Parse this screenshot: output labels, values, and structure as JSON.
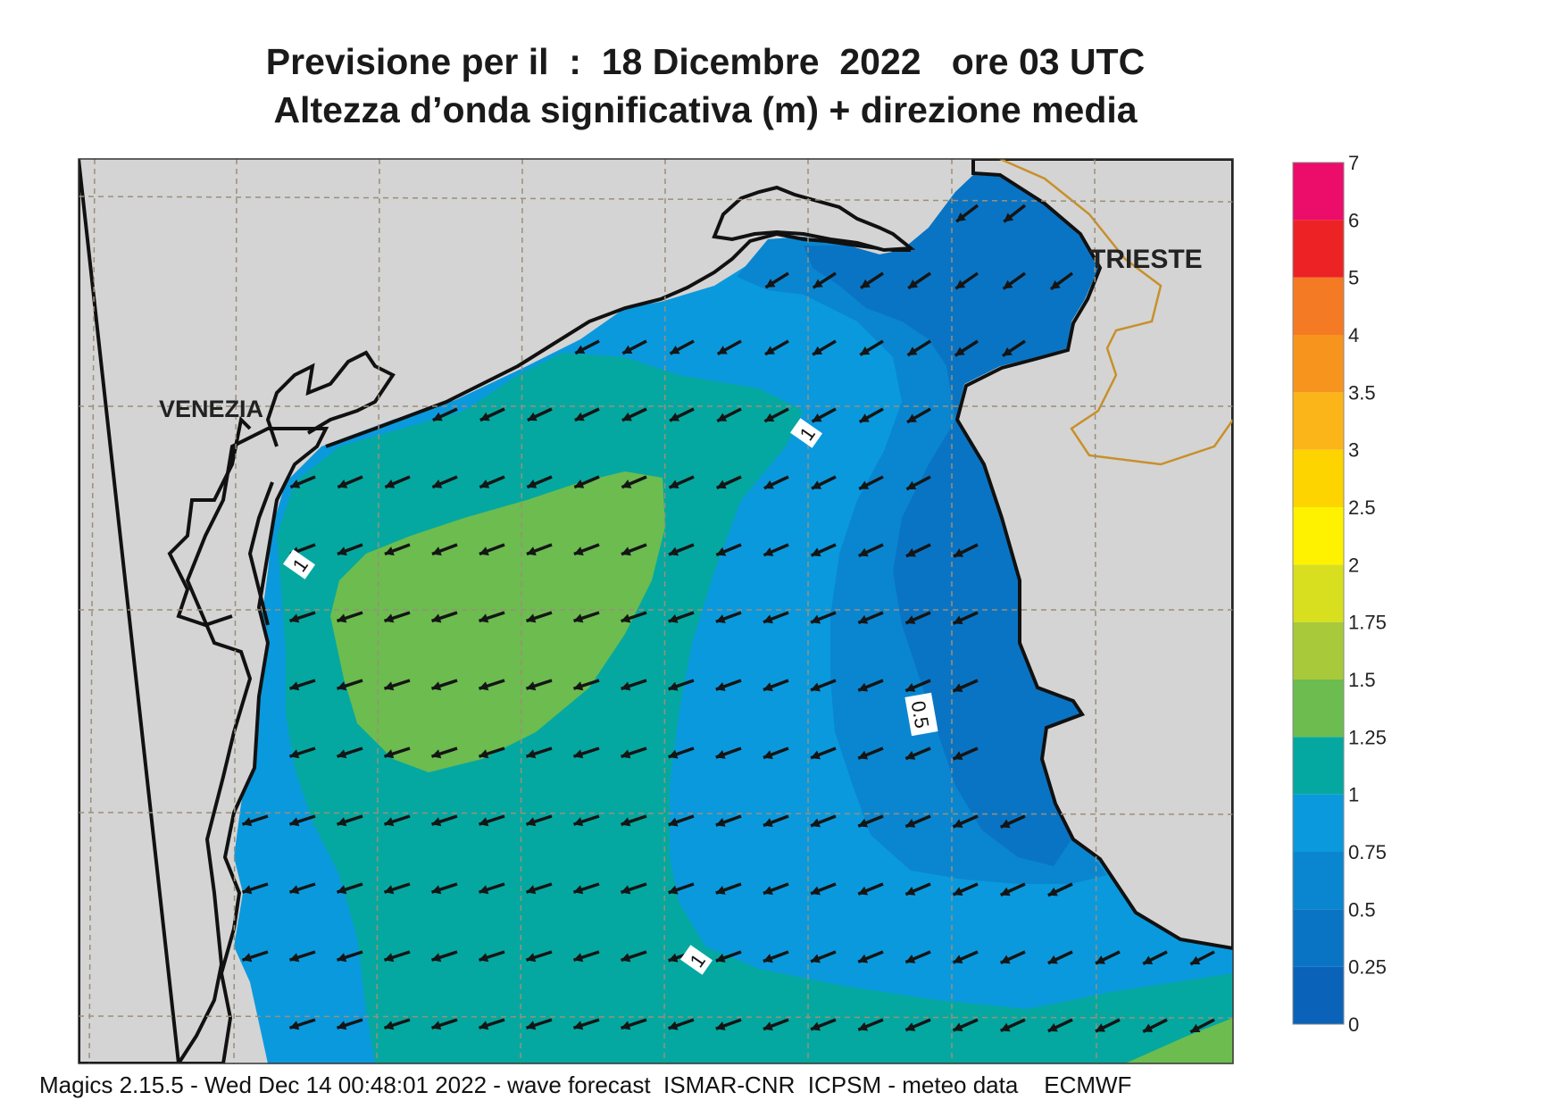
{
  "title": {
    "line1": "Previsione per il  :  18 Dicembre  2022   ore 03 UTC",
    "line2": "Altezza d’onda significativa (m) + direzione media"
  },
  "map_labels": {
    "venezia": "VENEZIA",
    "trieste": "TRIESTE",
    "contours": [
      "1",
      "1",
      "0.5",
      "1"
    ]
  },
  "legend": {
    "units": "m",
    "levels": [
      "0",
      "0.25",
      "0.5",
      "0.75",
      "1",
      "1.25",
      "1.5",
      "1.75",
      "2",
      "2.5",
      "3",
      "3.5",
      "4",
      "5",
      "6",
      "7"
    ],
    "colors": [
      "#0a63b8",
      "#0a74c4",
      "#0a86d0",
      "#0b99dd",
      "#05a8a0",
      "#6cbc4f",
      "#a8c93a",
      "#d8df1e",
      "#fff200",
      "#fdd400",
      "#fbb519",
      "#f7941e",
      "#f47a24",
      "#ed2224",
      "#ec0d6b"
    ]
  },
  "map_colors": {
    "land": "#d4d4d4",
    "coast": "#111111",
    "border": "#c8902a",
    "grid": "#9a8f7a",
    "arrow": "#151515"
  },
  "arrow_direction": "south-west (toward the Venetian coast)",
  "footer": "Magics 2.15.5 - Wed Dec 14 00:48:01 2022 - wave forecast  ISMAR-CNR  ICPSM - meteo data    ECMWF"
}
